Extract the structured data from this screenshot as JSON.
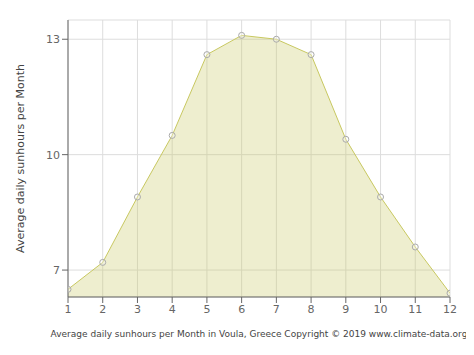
{
  "chart_data": {
    "type": "area",
    "x": [
      1,
      2,
      3,
      4,
      5,
      6,
      7,
      8,
      9,
      10,
      11,
      12
    ],
    "values": [
      6.5,
      7.2,
      8.9,
      10.5,
      12.6,
      13.1,
      13.0,
      12.6,
      10.4,
      8.9,
      7.6,
      6.4
    ],
    "color": "#C8C860",
    "marker": "circle",
    "xlabel": "Average daily sunhours per Month in Voula, Greece Copyright © 2019 www.climate-data.org",
    "ylabel": "Average daily sunhours per Month",
    "xlim": [
      1,
      12
    ],
    "ylim": [
      6.3,
      13.5
    ],
    "xticks": [
      1,
      2,
      3,
      4,
      5,
      6,
      7,
      8,
      9,
      10,
      11,
      12
    ],
    "yticks": [
      7,
      10,
      13
    ],
    "grid": true
  }
}
